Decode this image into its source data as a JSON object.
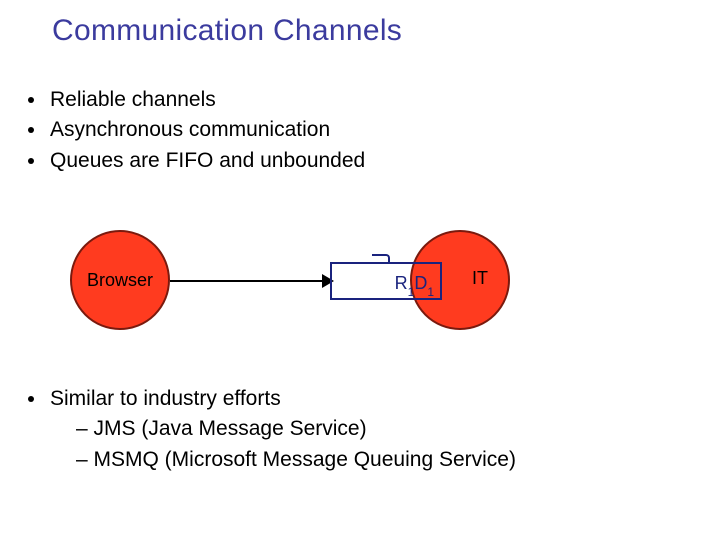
{
  "title": "Communication Channels",
  "top_bullets": [
    "Reliable channels",
    "Asynchronous communication",
    "Queues are FIFO and unbounded"
  ],
  "bottom_bullet": "Similar to industry efforts",
  "bottom_subs": [
    "– JMS (Java Message Service)",
    "– MSMQ (Microsoft Message Queuing Service)"
  ],
  "diagram": {
    "type": "flowchart",
    "nodes": [
      {
        "id": "browser",
        "label": "Browser",
        "shape": "circle",
        "fill": "#ff3b1f",
        "border": "#7a1a0e"
      },
      {
        "id": "it",
        "label": "IT",
        "shape": "circle",
        "fill": "#ff3b1f",
        "border": "#7a1a0e"
      }
    ],
    "queue": {
      "items": [
        {
          "sym": "R",
          "sub": "1"
        },
        {
          "sym": "D",
          "sub": "1"
        }
      ],
      "border_color": "#1a237e",
      "text_color": "#1a237e"
    },
    "edges": [
      {
        "from": "browser",
        "to": "queue",
        "style": "arrow",
        "color": "#000000"
      }
    ],
    "background_color": "#ffffff"
  },
  "colors": {
    "title": "#3b3b9e",
    "text": "#000000",
    "node_fill": "#ff3b1f",
    "node_border": "#7a1a0e",
    "queue_border": "#1a237e",
    "arrow": "#000000"
  },
  "fonts": {
    "title_size_pt": 22,
    "body_size_pt": 16,
    "node_label_size_pt": 14
  }
}
